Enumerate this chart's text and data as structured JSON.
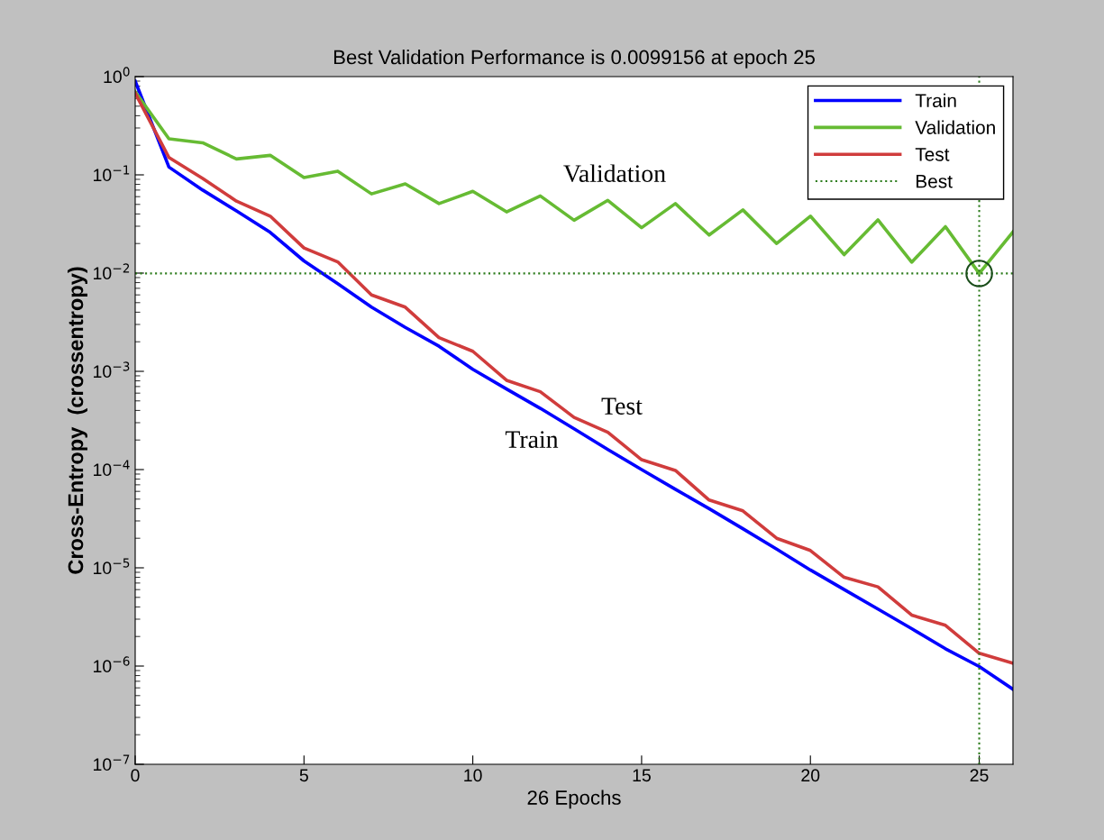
{
  "chart_data": {
    "type": "line",
    "title": "Best Validation Performance is 0.0099156 at epoch 25",
    "xlabel": "26 Epochs",
    "ylabel": "Cross-Entropy  (crossentropy)",
    "x": [
      0,
      1,
      2,
      3,
      4,
      5,
      6,
      7,
      8,
      9,
      10,
      11,
      12,
      13,
      14,
      15,
      16,
      17,
      18,
      19,
      20,
      21,
      22,
      23,
      24,
      25,
      26
    ],
    "series": [
      {
        "name": "Train",
        "color": "#0000ff",
        "values": [
          0.9,
          0.12,
          0.07,
          0.043,
          0.026,
          0.0133,
          0.0078,
          0.0045,
          0.0028,
          0.0018,
          0.00105,
          0.00066,
          0.00042,
          0.00026,
          0.00016,
          0.0001,
          6.3e-05,
          4e-05,
          2.5e-05,
          1.55e-05,
          9.5e-06,
          6e-06,
          3.8e-06,
          2.4e-06,
          1.5e-06,
          9.9e-07,
          5.8e-07
        ]
      },
      {
        "name": "Validation",
        "color": "#66bb33",
        "values": [
          0.7,
          0.233,
          0.212,
          0.145,
          0.158,
          0.094,
          0.109,
          0.064,
          0.081,
          0.051,
          0.068,
          0.042,
          0.061,
          0.0345,
          0.055,
          0.029,
          0.051,
          0.0244,
          0.044,
          0.02,
          0.038,
          0.0154,
          0.0348,
          0.0129,
          0.0297,
          0.0099156,
          0.0262
        ]
      },
      {
        "name": "Test",
        "color": "#d03c3c",
        "values": [
          0.68,
          0.15,
          0.092,
          0.054,
          0.038,
          0.018,
          0.013,
          0.006,
          0.0045,
          0.0022,
          0.0016,
          0.00081,
          0.00062,
          0.00034,
          0.00024,
          0.000126,
          9.8e-05,
          4.9e-05,
          3.8e-05,
          2e-05,
          1.5e-05,
          8e-06,
          6.4e-06,
          3.3e-06,
          2.6e-06,
          1.35e-06,
          1.07e-06
        ]
      },
      {
        "type": "scatter",
        "x": [
          25
        ],
        "values": [
          0.0099156
        ],
        "color": "#1a4d1a",
        "marker": "circle"
      }
    ],
    "ref_lines": [
      {
        "axis": "y",
        "value": 0.0099156,
        "label": "Best",
        "color": "#2e7d1e",
        "line_style": "dotted"
      },
      {
        "axis": "x",
        "value": 25,
        "label": null,
        "color": "#2e7d1e",
        "line_style": "dotted"
      }
    ],
    "annotations": [
      "Validation",
      "Test",
      "Train"
    ],
    "log": "y",
    "xlim": [
      0,
      26
    ],
    "xticks": [
      0,
      5,
      10,
      15,
      20,
      25
    ],
    "ylim": [
      1e-07,
      1
    ],
    "yticks": [
      {
        "value": 1e-07,
        "label": "10$^{−7}$"
      },
      {
        "value": 1e-06,
        "label": "10$^{−6}$"
      },
      {
        "value": 1e-05,
        "label": "10$^{−5}$"
      },
      {
        "value": 0.0001,
        "label": "10$^{−4}$"
      },
      {
        "value": 0.001,
        "label": "10$^{−3}$"
      },
      {
        "value": 0.01,
        "label": "10$^{−2}$"
      },
      {
        "value": 0.1,
        "label": "10$^{−1}$"
      },
      {
        "value": 1,
        "label": "10$^{0}$"
      }
    ],
    "grid": false,
    "legend": "top right",
    "line_style": "solid",
    "marker": "none"
  }
}
